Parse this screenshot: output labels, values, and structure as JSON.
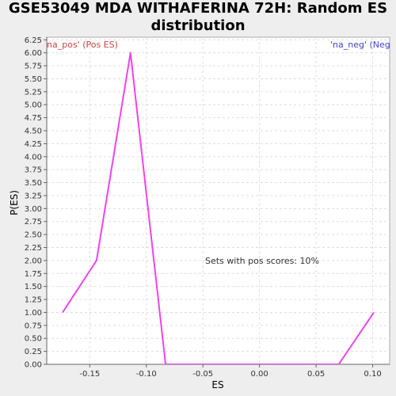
{
  "chart_data": {
    "type": "line",
    "title": "GSE53049 MDA WITHAFERINA 72H: Random ES distribution",
    "xlabel": "ES",
    "ylabel": "P(ES)",
    "xlim": [
      -0.188,
      0.115
    ],
    "ylim": [
      0,
      6.3
    ],
    "x_ticks": [
      -0.15,
      -0.1,
      -0.05,
      0.0,
      0.05,
      0.1
    ],
    "x_tick_labels": [
      "-0.15",
      "-0.10",
      "-0.05",
      "0.00",
      "0.05",
      "0.10"
    ],
    "y_ticks": [
      0.0,
      0.25,
      0.5,
      0.75,
      1.0,
      1.25,
      1.5,
      1.75,
      2.0,
      2.25,
      2.5,
      2.75,
      3.0,
      3.25,
      3.5,
      3.75,
      4.0,
      4.25,
      4.5,
      4.75,
      5.0,
      5.25,
      5.5,
      5.75,
      6.0,
      6.25
    ],
    "y_tick_labels": [
      "0.00",
      "0.25",
      "0.50",
      "0.75",
      "1.00",
      "1.25",
      "1.50",
      "1.75",
      "2.00",
      "2.25",
      "2.50",
      "2.75",
      "3.00",
      "3.25",
      "3.50",
      "3.75",
      "4.00",
      "4.25",
      "4.50",
      "4.75",
      "5.00",
      "5.25",
      "5.50",
      "5.75",
      "6.00",
      "6.25"
    ],
    "grid": true,
    "series": [
      {
        "color": "#ee44ee",
        "x": [
          -0.174,
          -0.144,
          -0.114,
          -0.083,
          -0.022,
          0.01,
          0.04,
          0.07,
          0.101
        ],
        "y": [
          1.0,
          2.0,
          6.0,
          0.0,
          0.0,
          0.0,
          0.0,
          0.0,
          1.0
        ]
      }
    ],
    "annotations": [
      {
        "text": "'na_pos' (Pos ES)",
        "color": "#cc4444",
        "position": "top-left"
      },
      {
        "text": "'na_neg' (Neg",
        "color": "#4444cc",
        "position": "top-right"
      },
      {
        "text": "Sets with pos scores: 10%",
        "color": "#333333",
        "position": "center-right"
      }
    ]
  }
}
